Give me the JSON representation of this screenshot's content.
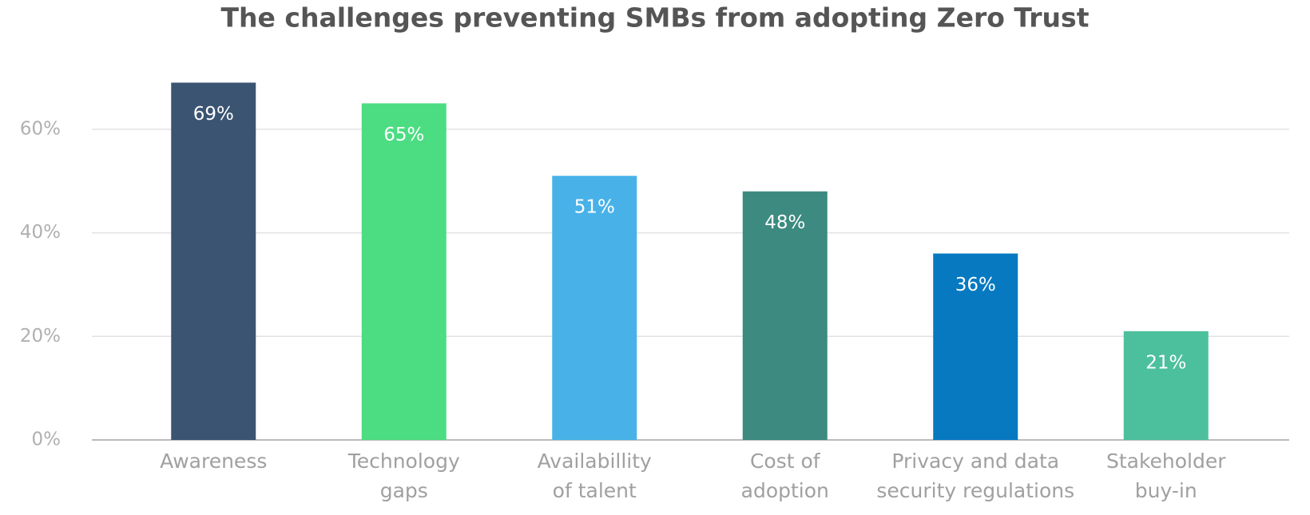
{
  "chart_data": {
    "type": "bar",
    "title": "The challenges preventing SMBs from adopting Zero Trust",
    "categories": [
      "Awareness",
      "Technology\ngaps",
      "Availabillity\nof talent",
      "Cost of\nadoption",
      "Privacy and data\nsecurity regulations",
      "Stakeholder\nbuy-in"
    ],
    "values": [
      69,
      65,
      51,
      48,
      36,
      21
    ],
    "value_labels": [
      "69%",
      "65%",
      "51%",
      "48%",
      "36%",
      "21%"
    ],
    "colors": [
      "#3b5472",
      "#4cdc82",
      "#48b2e8",
      "#3c8a80",
      "#0679c1",
      "#4cc09c"
    ],
    "ylim": [
      0,
      70
    ],
    "yticks": [
      {
        "value": 0,
        "label": "0%"
      },
      {
        "value": 20,
        "label": "20%"
      },
      {
        "value": 40,
        "label": "40%"
      },
      {
        "value": 60,
        "label": "60%"
      }
    ],
    "grid": true
  }
}
